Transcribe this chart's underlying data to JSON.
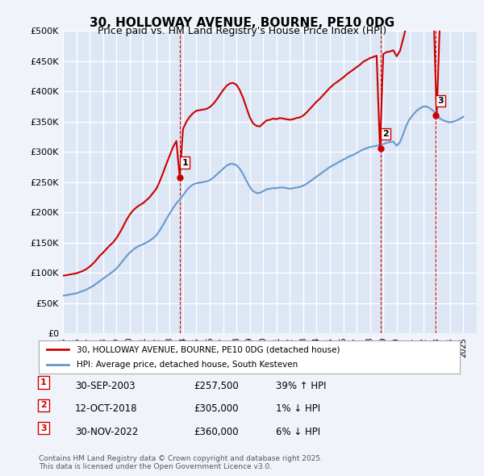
{
  "title": "30, HOLLOWAY AVENUE, BOURNE, PE10 0DG",
  "subtitle": "Price paid vs. HM Land Registry's House Price Index (HPI)",
  "ylabel_ticks": [
    "£0",
    "£50K",
    "£100K",
    "£150K",
    "£200K",
    "£250K",
    "£300K",
    "£350K",
    "£400K",
    "£450K",
    "£500K"
  ],
  "ytick_values": [
    0,
    50000,
    100000,
    150000,
    200000,
    250000,
    300000,
    350000,
    400000,
    450000,
    500000
  ],
  "ylim": [
    0,
    500000
  ],
  "xlim_start": 1995.0,
  "xlim_end": 2026.0,
  "background_color": "#f0f4fa",
  "plot_bg_color": "#dce6f5",
  "grid_color": "#ffffff",
  "red_color": "#cc0000",
  "blue_color": "#6699cc",
  "sale_dates": [
    2003.75,
    2018.78,
    2022.92
  ],
  "sale_prices": [
    257500,
    305000,
    360000
  ],
  "sale_labels": [
    "1",
    "2",
    "3"
  ],
  "vline_color": "#cc0000",
  "legend_line1": "30, HOLLOWAY AVENUE, BOURNE, PE10 0DG (detached house)",
  "legend_line2": "HPI: Average price, detached house, South Kesteven",
  "table_data": [
    [
      "1",
      "30-SEP-2003",
      "£257,500",
      "39% ↑ HPI"
    ],
    [
      "2",
      "12-OCT-2018",
      "£305,000",
      "1% ↓ HPI"
    ],
    [
      "3",
      "30-NOV-2022",
      "£360,000",
      "6% ↓ HPI"
    ]
  ],
  "footer": "Contains HM Land Registry data © Crown copyright and database right 2025.\nThis data is licensed under the Open Government Licence v3.0.",
  "hpi_x": [
    1995.0,
    1995.25,
    1995.5,
    1995.75,
    1996.0,
    1996.25,
    1996.5,
    1996.75,
    1997.0,
    1997.25,
    1997.5,
    1997.75,
    1998.0,
    1998.25,
    1998.5,
    1998.75,
    1999.0,
    1999.25,
    1999.5,
    1999.75,
    2000.0,
    2000.25,
    2000.5,
    2000.75,
    2001.0,
    2001.25,
    2001.5,
    2001.75,
    2002.0,
    2002.25,
    2002.5,
    2002.75,
    2003.0,
    2003.25,
    2003.5,
    2003.75,
    2004.0,
    2004.25,
    2004.5,
    2004.75,
    2005.0,
    2005.25,
    2005.5,
    2005.75,
    2006.0,
    2006.25,
    2006.5,
    2006.75,
    2007.0,
    2007.25,
    2007.5,
    2007.75,
    2008.0,
    2008.25,
    2008.5,
    2008.75,
    2009.0,
    2009.25,
    2009.5,
    2009.75,
    2010.0,
    2010.25,
    2010.5,
    2010.75,
    2011.0,
    2011.25,
    2011.5,
    2011.75,
    2012.0,
    2012.25,
    2012.5,
    2012.75,
    2013.0,
    2013.25,
    2013.5,
    2013.75,
    2014.0,
    2014.25,
    2014.5,
    2014.75,
    2015.0,
    2015.25,
    2015.5,
    2015.75,
    2016.0,
    2016.25,
    2016.5,
    2016.75,
    2017.0,
    2017.25,
    2017.5,
    2017.75,
    2018.0,
    2018.25,
    2018.5,
    2018.75,
    2019.0,
    2019.25,
    2019.5,
    2019.75,
    2020.0,
    2020.25,
    2020.5,
    2020.75,
    2021.0,
    2021.25,
    2021.5,
    2021.75,
    2022.0,
    2022.25,
    2022.5,
    2022.75,
    2023.0,
    2023.25,
    2023.5,
    2023.75,
    2024.0,
    2024.25,
    2024.5,
    2024.75,
    2025.0
  ],
  "hpi_y": [
    62000,
    63000,
    64000,
    65000,
    66000,
    68000,
    70000,
    72000,
    75000,
    78000,
    82000,
    86000,
    90000,
    94000,
    98000,
    102000,
    107000,
    113000,
    120000,
    127000,
    133000,
    138000,
    142000,
    145000,
    147000,
    150000,
    153000,
    157000,
    162000,
    170000,
    179000,
    189000,
    198000,
    207000,
    215000,
    221000,
    228000,
    236000,
    242000,
    246000,
    248000,
    249000,
    250000,
    251000,
    253000,
    257000,
    262000,
    267000,
    272000,
    277000,
    280000,
    280000,
    278000,
    272000,
    263000,
    252000,
    242000,
    235000,
    232000,
    232000,
    235000,
    238000,
    239000,
    240000,
    240000,
    241000,
    241000,
    240000,
    239000,
    240000,
    241000,
    242000,
    244000,
    247000,
    251000,
    255000,
    259000,
    263000,
    267000,
    271000,
    275000,
    278000,
    281000,
    284000,
    287000,
    290000,
    293000,
    295000,
    298000,
    301000,
    304000,
    306000,
    308000,
    309000,
    310000,
    311000,
    313000,
    315000,
    316000,
    317000,
    310000,
    316000,
    330000,
    345000,
    355000,
    362000,
    368000,
    372000,
    375000,
    375000,
    372000,
    368000,
    360000,
    355000,
    352000,
    350000,
    349000,
    350000,
    352000,
    355000,
    358000
  ],
  "red_x": [
    1995.0,
    1995.25,
    1995.5,
    1995.75,
    1996.0,
    1996.25,
    1996.5,
    1996.75,
    1997.0,
    1997.25,
    1997.5,
    1997.75,
    1998.0,
    1998.25,
    1998.5,
    1998.75,
    1999.0,
    1999.25,
    1999.5,
    1999.75,
    2000.0,
    2000.25,
    2000.5,
    2000.75,
    2001.0,
    2001.25,
    2001.5,
    2001.75,
    2002.0,
    2002.25,
    2002.5,
    2002.75,
    2003.0,
    2003.25,
    2003.5,
    2003.75,
    2004.0,
    2004.25,
    2004.5,
    2004.75,
    2005.0,
    2005.25,
    2005.5,
    2005.75,
    2006.0,
    2006.25,
    2006.5,
    2006.75,
    2007.0,
    2007.25,
    2007.5,
    2007.75,
    2008.0,
    2008.25,
    2008.5,
    2008.75,
    2009.0,
    2009.25,
    2009.5,
    2009.75,
    2010.0,
    2010.25,
    2010.5,
    2010.75,
    2011.0,
    2011.25,
    2011.5,
    2011.75,
    2012.0,
    2012.25,
    2012.5,
    2012.75,
    2013.0,
    2013.25,
    2013.5,
    2013.75,
    2014.0,
    2014.25,
    2014.5,
    2014.75,
    2015.0,
    2015.25,
    2015.5,
    2015.75,
    2016.0,
    2016.25,
    2016.5,
    2016.75,
    2017.0,
    2017.25,
    2017.5,
    2017.75,
    2018.0,
    2018.25,
    2018.5,
    2018.75,
    2019.0,
    2019.25,
    2019.5,
    2019.75,
    2020.0,
    2020.25,
    2020.5,
    2020.75,
    2021.0,
    2021.25,
    2021.5,
    2021.75,
    2022.0,
    2022.25,
    2022.5,
    2022.75,
    2023.0,
    2023.25,
    2023.5,
    2023.75,
    2024.0,
    2024.25,
    2024.5,
    2024.75,
    2025.0
  ],
  "red_y": [
    95000,
    96000,
    97000,
    98000,
    99000,
    101000,
    103000,
    106000,
    110000,
    115000,
    121000,
    128000,
    133000,
    139000,
    145000,
    150000,
    157000,
    166000,
    176000,
    187000,
    196000,
    203000,
    208000,
    212000,
    215000,
    220000,
    225000,
    232000,
    239000,
    251000,
    265000,
    280000,
    294000,
    308000,
    318000,
    257500,
    338000,
    350000,
    358000,
    364000,
    368000,
    369000,
    370000,
    371000,
    374000,
    379000,
    386000,
    394000,
    402000,
    409000,
    413000,
    414000,
    411000,
    402000,
    389000,
    373000,
    357000,
    347000,
    343000,
    342000,
    347000,
    352000,
    353000,
    355000,
    354000,
    356000,
    355000,
    354000,
    353000,
    354000,
    356000,
    357000,
    360000,
    365000,
    371000,
    377000,
    383000,
    388000,
    394000,
    400000,
    406000,
    411000,
    415000,
    419000,
    423000,
    428000,
    432000,
    436000,
    440000,
    444000,
    449000,
    452000,
    455000,
    457000,
    459000,
    305000,
    462000,
    465000,
    466000,
    468000,
    458000,
    467000,
    488000,
    510000,
    524000,
    535000,
    544000,
    549000,
    554000,
    554000,
    550000,
    544000,
    360000,
    524000,
    520000,
    517000,
    515000,
    517000,
    519000,
    524000,
    529000
  ]
}
